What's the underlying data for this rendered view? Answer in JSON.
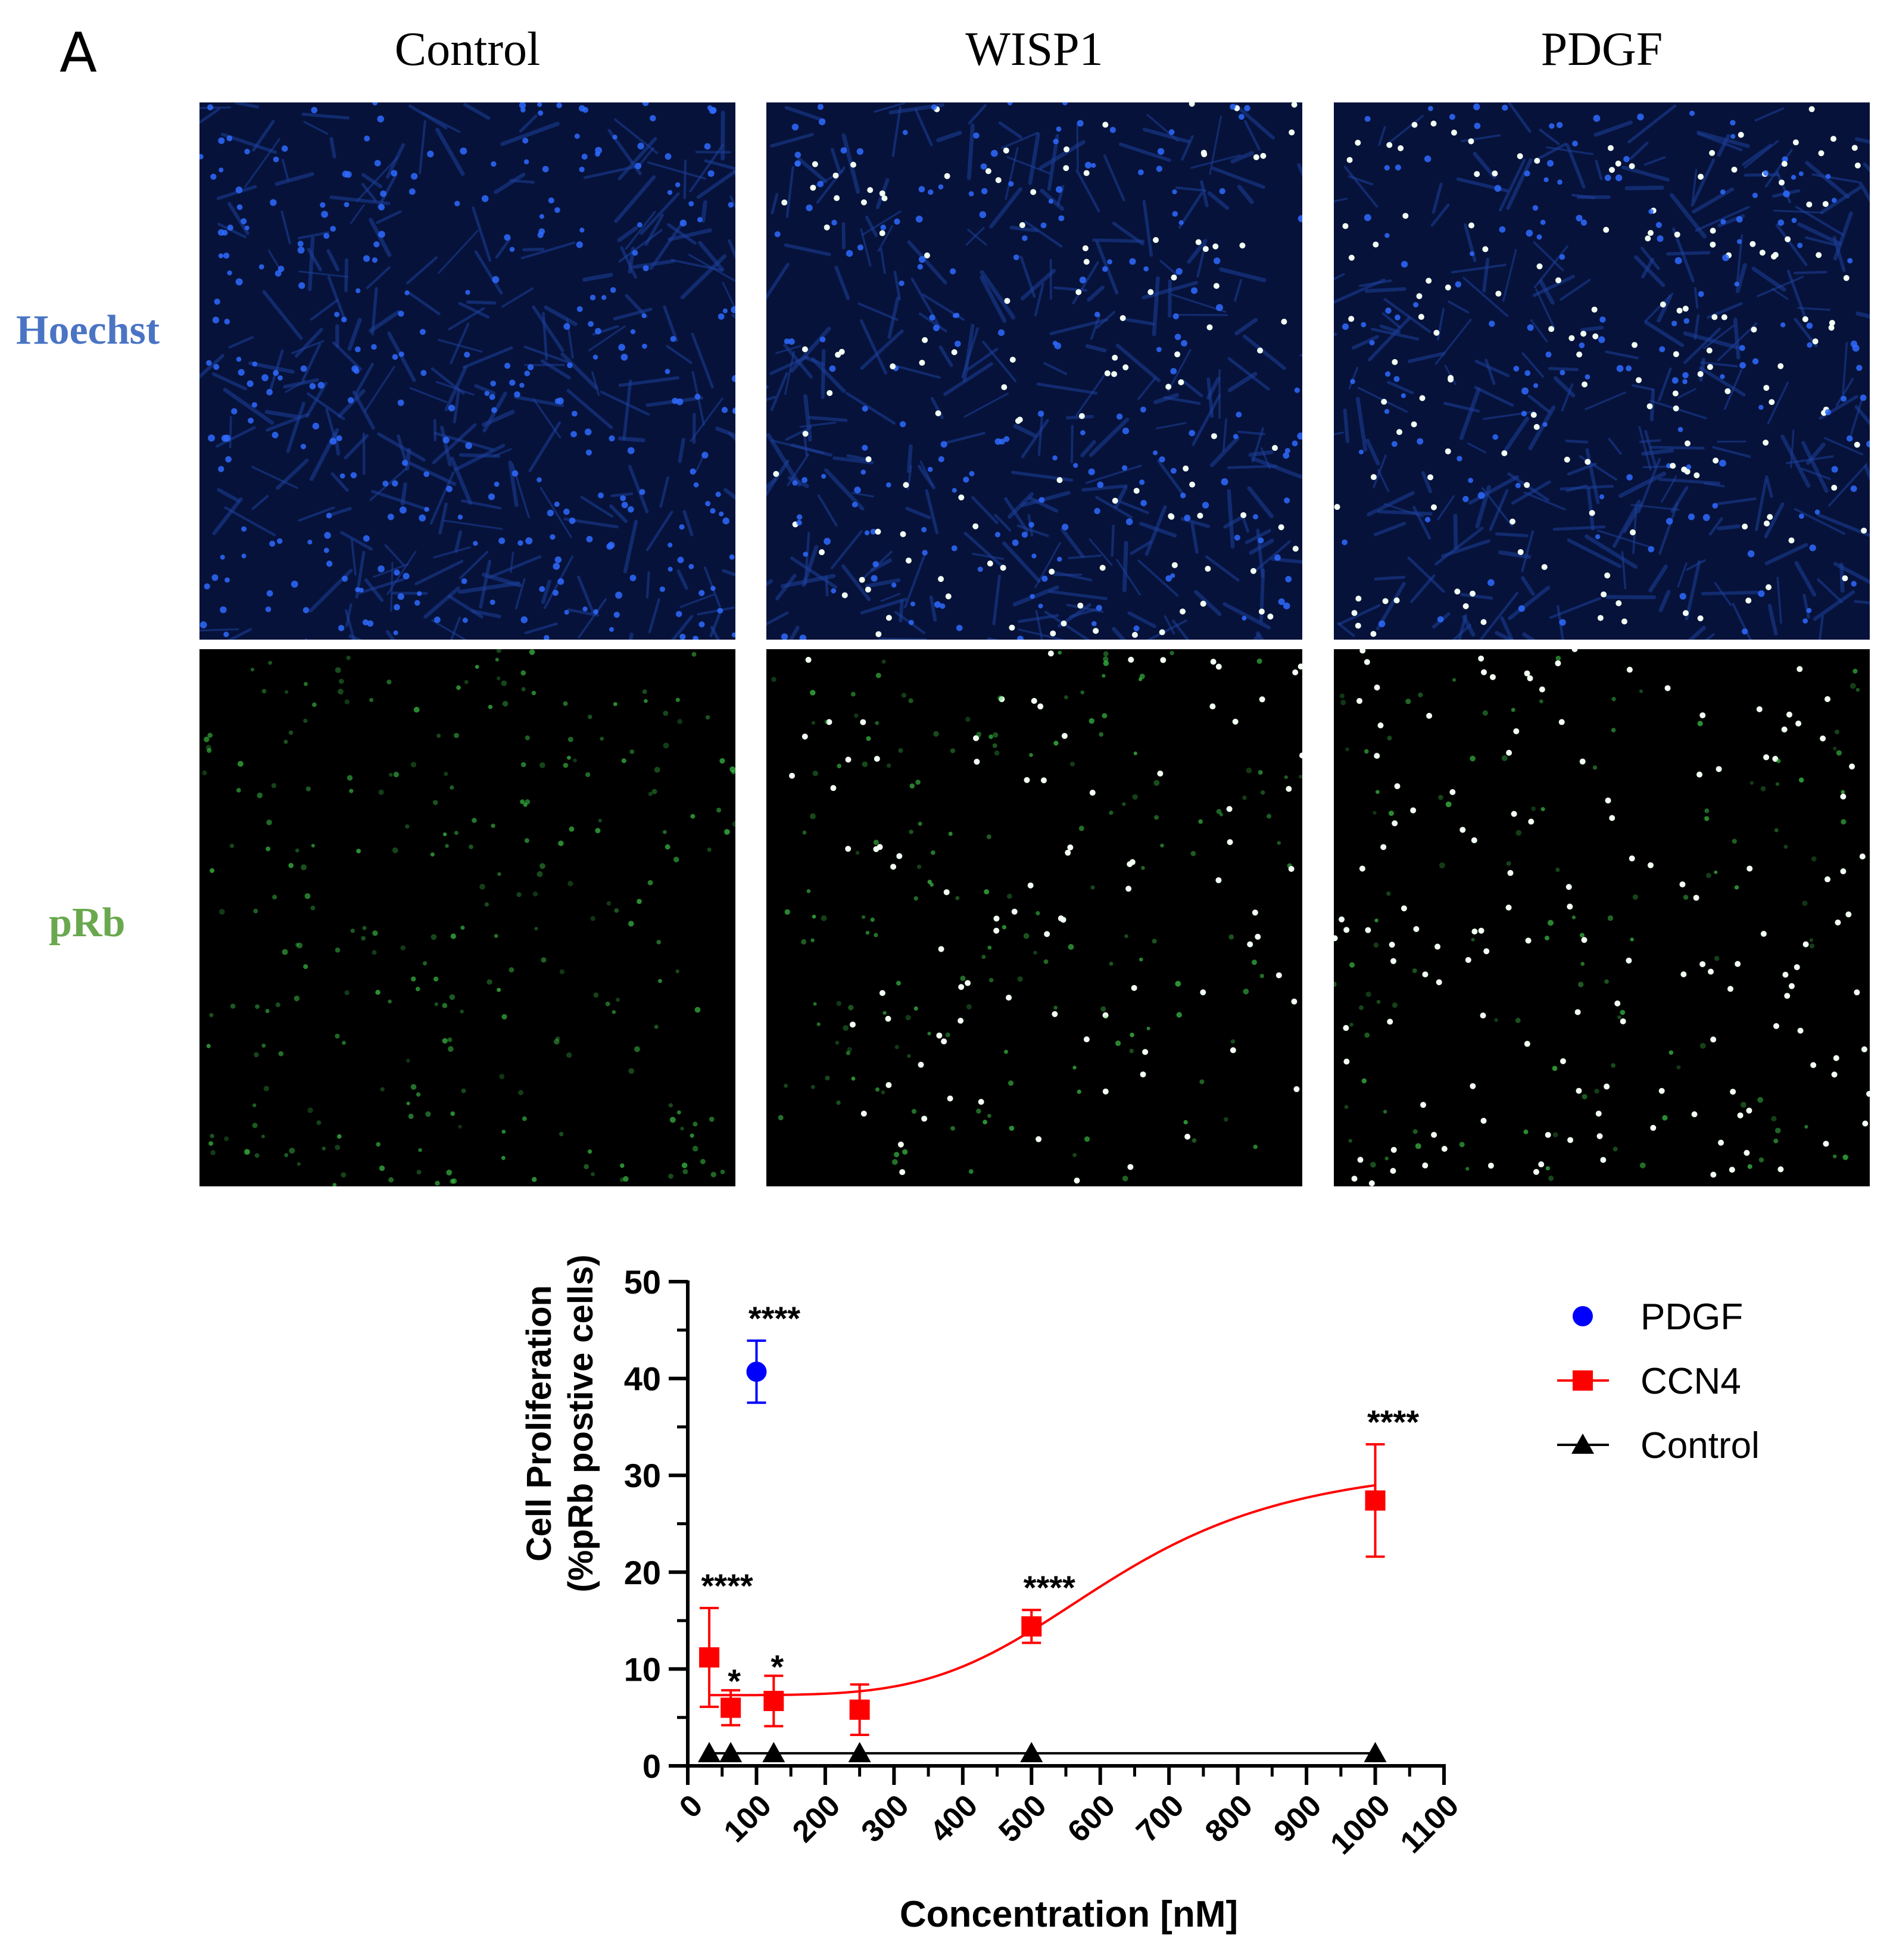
{
  "figure": {
    "panel_letter": "A",
    "columns": [
      "Control",
      "WISP1",
      "PDGF"
    ],
    "rows": [
      {
        "label": "Hoechst",
        "color": "#4a74c4"
      },
      {
        "label": "pRb",
        "color": "#6aa84f"
      }
    ],
    "micrograph_colors": {
      "hoechst_background": "#06123a",
      "hoechst_nucleus": "#2f6bff",
      "prb_background": "#000000",
      "prb_nucleus": "#3fd04a",
      "bright_nucleus": "#f2fff2"
    }
  },
  "chart_data": {
    "type": "scatter",
    "xlabel": "Concentration [nM]",
    "ylabel_line1": "Cell Proliferation",
    "ylabel_line2": "(%pRb postive cells)",
    "xlim": [
      0,
      1100
    ],
    "ylim": [
      0,
      50
    ],
    "x_ticks": [
      "0",
      "100",
      "200",
      "300",
      "400",
      "500",
      "600",
      "700",
      "800",
      "900",
      "1000",
      "1100"
    ],
    "y_ticks": [
      "0",
      "10",
      "20",
      "30",
      "40",
      "50"
    ],
    "legend_placement": "right",
    "series": [
      {
        "name": "PDGF",
        "color": "#0000ff",
        "marker": "circle",
        "connect": "none",
        "x": [
          100
        ],
        "y": [
          40.7
        ],
        "err": [
          3.2
        ],
        "labels": [
          "****"
        ]
      },
      {
        "name": "CCN4",
        "color": "#ff0000",
        "marker": "square",
        "connect": "fit",
        "x": [
          31.25,
          62.5,
          125,
          250,
          500,
          1000
        ],
        "y": [
          11.2,
          6.0,
          6.7,
          5.8,
          14.4,
          27.4
        ],
        "err": [
          5.1,
          1.8,
          2.6,
          2.6,
          1.7,
          5.8
        ],
        "labels": [
          "****",
          "*",
          "*",
          "",
          "****",
          "****"
        ],
        "fit": {
          "bottom": 7.3,
          "top": 31.5,
          "ec50": 620,
          "hill": 4.5
        }
      },
      {
        "name": "Control",
        "color": "#000000",
        "marker": "triangle",
        "connect": "line",
        "x": [
          31.25,
          62.5,
          125,
          250,
          500,
          1000
        ],
        "y": [
          1.3,
          1.3,
          1.3,
          1.3,
          1.3,
          1.3
        ],
        "err": [
          0,
          0,
          0,
          0,
          0,
          0
        ],
        "labels": [
          "",
          "",
          "",
          "",
          "",
          ""
        ]
      }
    ]
  }
}
